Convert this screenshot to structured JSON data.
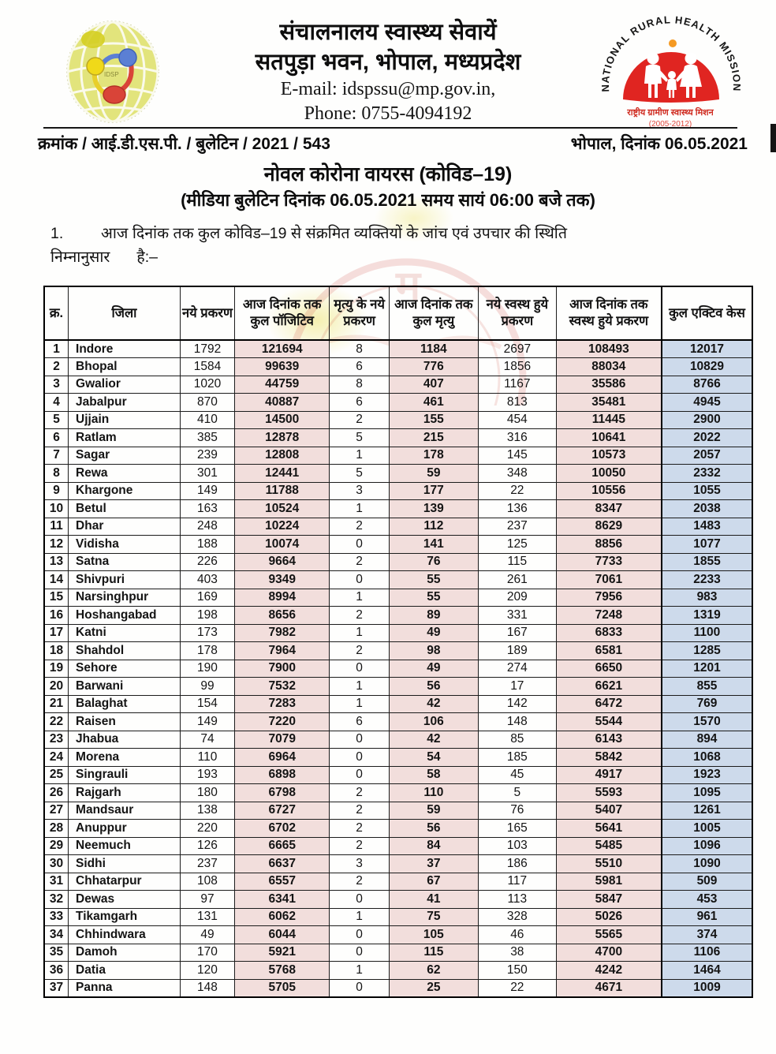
{
  "letterhead": {
    "org_line1": "संचालनालय स्वास्थ्य सेवायें",
    "org_line2": "सतपुड़ा भवन, भोपाल, मध्यप्रदेश",
    "email_line": "E-mail: idspssu@mp.gov.in,",
    "phone_line": "Phone: 0755-4094192",
    "left_logo_name": "idsp-globe-logo",
    "right_logo": {
      "arc_text": "NATIONAL RURAL HEALTH MISSION",
      "hindi_text": "राष्ट्रीय ग्रामीण स्वास्थ्य मिशन",
      "years_text": "(2005-2012)"
    }
  },
  "reference": {
    "number_line": "क्रमांक / आई.डी.एस.पी. / बुलेटिन / 2021 / 543",
    "place_date": "भोपाल, दिनांक 06.05.2021"
  },
  "title": "नोवल कोरोना वायरस (कोविड–19)",
  "subtitle": "(मीडिया बुलेटिन दिनांक 06.05.2021 समय सायं 06:00 बजे तक)",
  "paragraph": {
    "number": "1.",
    "line1": "आज दिनांक तक कुल कोविड–19 से संक्रमित व्यक्तियों के जांच एवं उपचार की स्थिति",
    "line2a": "निम्नानुसार",
    "line2b": "है:–"
  },
  "table": {
    "headers": [
      "क्र.",
      "जिला",
      "नये प्रकरण",
      "आज दिनांक तक कुल पॉजिटिव",
      "मृत्यु के नये प्रकरण",
      "आज दिनांक तक कुल मृत्यु",
      "नये स्वस्थ हुये प्रकरण",
      "आज दिनांक तक स्वस्थ हुये प्रकरण",
      "कुल एक्टिव केस"
    ],
    "rows": [
      [
        "1",
        "Indore",
        "1792",
        "121694",
        "8",
        "1184",
        "2697",
        "108493",
        "12017"
      ],
      [
        "2",
        "Bhopal",
        "1584",
        "99639",
        "6",
        "776",
        "1856",
        "88034",
        "10829"
      ],
      [
        "3",
        "Gwalior",
        "1020",
        "44759",
        "8",
        "407",
        "1167",
        "35586",
        "8766"
      ],
      [
        "4",
        "Jabalpur",
        "870",
        "40887",
        "6",
        "461",
        "813",
        "35481",
        "4945"
      ],
      [
        "5",
        "Ujjain",
        "410",
        "14500",
        "2",
        "155",
        "454",
        "11445",
        "2900"
      ],
      [
        "6",
        "Ratlam",
        "385",
        "12878",
        "5",
        "215",
        "316",
        "10641",
        "2022"
      ],
      [
        "7",
        "Sagar",
        "239",
        "12808",
        "1",
        "178",
        "145",
        "10573",
        "2057"
      ],
      [
        "8",
        "Rewa",
        "301",
        "12441",
        "5",
        "59",
        "348",
        "10050",
        "2332"
      ],
      [
        "9",
        "Khargone",
        "149",
        "11788",
        "3",
        "177",
        "22",
        "10556",
        "1055"
      ],
      [
        "10",
        "Betul",
        "163",
        "10524",
        "1",
        "139",
        "136",
        "8347",
        "2038"
      ],
      [
        "11",
        "Dhar",
        "248",
        "10224",
        "2",
        "112",
        "237",
        "8629",
        "1483"
      ],
      [
        "12",
        "Vidisha",
        "188",
        "10074",
        "0",
        "141",
        "125",
        "8856",
        "1077"
      ],
      [
        "13",
        "Satna",
        "226",
        "9664",
        "2",
        "76",
        "115",
        "7733",
        "1855"
      ],
      [
        "14",
        "Shivpuri",
        "403",
        "9349",
        "0",
        "55",
        "261",
        "7061",
        "2233"
      ],
      [
        "15",
        "Narsinghpur",
        "169",
        "8994",
        "1",
        "55",
        "209",
        "7956",
        "983"
      ],
      [
        "16",
        "Hoshangabad",
        "198",
        "8656",
        "2",
        "89",
        "331",
        "7248",
        "1319"
      ],
      [
        "17",
        "Katni",
        "173",
        "7982",
        "1",
        "49",
        "167",
        "6833",
        "1100"
      ],
      [
        "18",
        "Shahdol",
        "178",
        "7964",
        "2",
        "98",
        "189",
        "6581",
        "1285"
      ],
      [
        "19",
        "Sehore",
        "190",
        "7900",
        "0",
        "49",
        "274",
        "6650",
        "1201"
      ],
      [
        "20",
        "Barwani",
        "99",
        "7532",
        "1",
        "56",
        "17",
        "6621",
        "855"
      ],
      [
        "21",
        "Balaghat",
        "154",
        "7283",
        "1",
        "42",
        "142",
        "6472",
        "769"
      ],
      [
        "22",
        "Raisen",
        "149",
        "7220",
        "6",
        "106",
        "148",
        "5544",
        "1570"
      ],
      [
        "23",
        "Jhabua",
        "74",
        "7079",
        "0",
        "42",
        "85",
        "6143",
        "894"
      ],
      [
        "24",
        "Morena",
        "110",
        "6964",
        "0",
        "54",
        "185",
        "5842",
        "1068"
      ],
      [
        "25",
        "Singrauli",
        "193",
        "6898",
        "0",
        "58",
        "45",
        "4917",
        "1923"
      ],
      [
        "26",
        "Rajgarh",
        "180",
        "6798",
        "2",
        "110",
        "5",
        "5593",
        "1095"
      ],
      [
        "27",
        "Mandsaur",
        "138",
        "6727",
        "2",
        "59",
        "76",
        "5407",
        "1261"
      ],
      [
        "28",
        "Anuppur",
        "220",
        "6702",
        "2",
        "56",
        "165",
        "5641",
        "1005"
      ],
      [
        "29",
        "Neemuch",
        "126",
        "6665",
        "2",
        "84",
        "103",
        "5485",
        "1096"
      ],
      [
        "30",
        "Sidhi",
        "237",
        "6637",
        "3",
        "37",
        "186",
        "5510",
        "1090"
      ],
      [
        "31",
        "Chhatarpur",
        "108",
        "6557",
        "2",
        "67",
        "117",
        "5981",
        "509"
      ],
      [
        "32",
        "Dewas",
        "97",
        "6341",
        "0",
        "41",
        "113",
        "5847",
        "453"
      ],
      [
        "33",
        "Tikamgarh",
        "131",
        "6062",
        "1",
        "75",
        "328",
        "5026",
        "961"
      ],
      [
        "34",
        "Chhindwara",
        "49",
        "6044",
        "0",
        "105",
        "46",
        "5565",
        "374"
      ],
      [
        "35",
        "Damoh",
        "170",
        "5921",
        "0",
        "115",
        "38",
        "4700",
        "1106"
      ],
      [
        "36",
        "Datia",
        "120",
        "5768",
        "1",
        "62",
        "150",
        "4242",
        "1464"
      ],
      [
        "37",
        "Panna",
        "148",
        "5705",
        "0",
        "25",
        "22",
        "4671",
        "1009"
      ]
    ]
  },
  "colors": {
    "cumulative_column_fill": "#f2dedc",
    "active_column_fill": "#cddaeb",
    "nrhm_red": "#e02521",
    "border_black": "#000000"
  }
}
